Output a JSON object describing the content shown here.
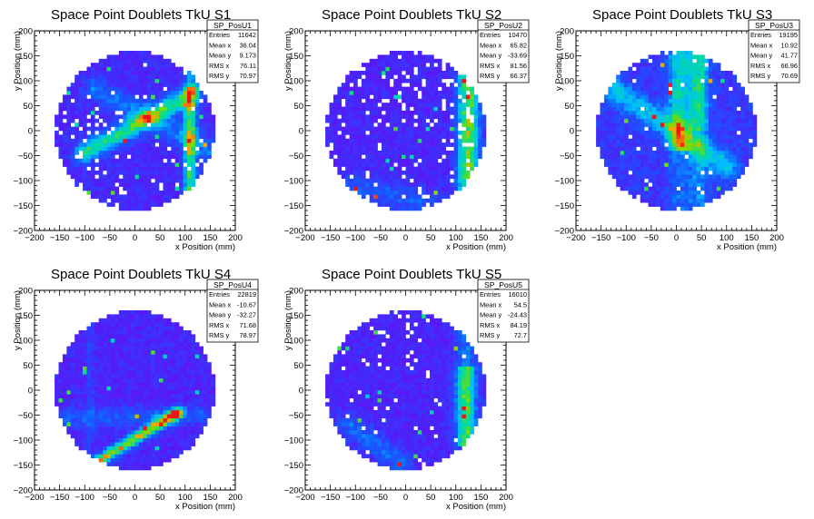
{
  "chart_data": [
    {
      "type": "heatmap",
      "title": "Space Point Doublets TkU S1",
      "xlabel": "x Position (mm)",
      "ylabel": "y Position (mm)",
      "xlim": [
        -200,
        200
      ],
      "ylim": [
        -200,
        200
      ],
      "xticks": [
        "−200",
        "−150",
        "−100",
        "−50",
        "0",
        "50",
        "100",
        "150",
        "200"
      ],
      "yticks": [
        "−200",
        "−150",
        "−100",
        "−50",
        "0",
        "50",
        "100",
        "150",
        "200"
      ],
      "stats": {
        "name": "SP_PosU1",
        "rows": [
          [
            "Entries",
            "11642"
          ],
          [
            "Mean x",
            "36.04"
          ],
          [
            "Mean y",
            "9.173"
          ],
          [
            "RMS x",
            "76.11"
          ],
          [
            "RMS y",
            "70.97"
          ]
        ]
      }
    },
    {
      "type": "heatmap",
      "title": "Space Point Doublets TkU S2",
      "xlabel": "x Position (mm)",
      "ylabel": "y Position (mm)",
      "xlim": [
        -200,
        200
      ],
      "ylim": [
        -200,
        200
      ],
      "xticks": [
        "−200",
        "−150",
        "−100",
        "−50",
        "0",
        "50",
        "100",
        "150",
        "200"
      ],
      "yticks": [
        "−200",
        "−150",
        "−100",
        "−50",
        "0",
        "50",
        "100",
        "150",
        "200"
      ],
      "stats": {
        "name": "SP_PosU2",
        "rows": [
          [
            "Entries",
            "10470"
          ],
          [
            "Mean x",
            "65.82"
          ],
          [
            "Mean y",
            "-33.69"
          ],
          [
            "RMS x",
            "81.56"
          ],
          [
            "RMS y",
            "66.37"
          ]
        ]
      }
    },
    {
      "type": "heatmap",
      "title": "Space Point Doublets TkU S3",
      "xlabel": "x Position (mm)",
      "ylabel": "y Position (mm)",
      "xlim": [
        -200,
        200
      ],
      "ylim": [
        -200,
        200
      ],
      "xticks": [
        "−200",
        "−150",
        "−100",
        "−50",
        "0",
        "50",
        "100",
        "150",
        "200"
      ],
      "yticks": [
        "−200",
        "−150",
        "−100",
        "−50",
        "0",
        "50",
        "100",
        "150",
        "200"
      ],
      "stats": {
        "name": "SP_PosU3",
        "rows": [
          [
            "Entries",
            "19195"
          ],
          [
            "Mean x",
            "10.92"
          ],
          [
            "Mean y",
            "41.77"
          ],
          [
            "RMS x",
            "66.96"
          ],
          [
            "RMS y",
            "70.69"
          ]
        ]
      }
    },
    {
      "type": "heatmap",
      "title": "Space Point Doublets TkU S4",
      "xlabel": "x Position (mm)",
      "ylabel": "y Position (mm)",
      "xlim": [
        -200,
        200
      ],
      "ylim": [
        -200,
        200
      ],
      "xticks": [
        "−200",
        "−150",
        "−100",
        "−50",
        "0",
        "50",
        "100",
        "150",
        "200"
      ],
      "yticks": [
        "−200",
        "−150",
        "−100",
        "−50",
        "0",
        "50",
        "100",
        "150",
        "200"
      ],
      "stats": {
        "name": "SP_PosU4",
        "rows": [
          [
            "Entries",
            "22819"
          ],
          [
            "Mean x",
            "-10.67"
          ],
          [
            "Mean y",
            "-32.27"
          ],
          [
            "RMS x",
            "71.68"
          ],
          [
            "RMS y",
            "78.97"
          ]
        ]
      }
    },
    {
      "type": "heatmap",
      "title": "Space Point Doublets TkU S5",
      "xlabel": "x Position (mm)",
      "ylabel": "y Position (mm)",
      "xlim": [
        -200,
        200
      ],
      "ylim": [
        -200,
        200
      ],
      "xticks": [
        "−200",
        "−150",
        "−100",
        "−50",
        "0",
        "50",
        "100",
        "150",
        "200"
      ],
      "yticks": [
        "−200",
        "−150",
        "−100",
        "−50",
        "0",
        "50",
        "100",
        "150",
        "200"
      ],
      "stats": {
        "name": "SP_PosU5",
        "rows": [
          [
            "Entries",
            "16010"
          ],
          [
            "Mean x",
            "54.5"
          ],
          [
            "Mean y",
            "-24.43"
          ],
          [
            "RMS x",
            "84.19"
          ],
          [
            "RMS y",
            "72.7"
          ]
        ]
      }
    }
  ]
}
